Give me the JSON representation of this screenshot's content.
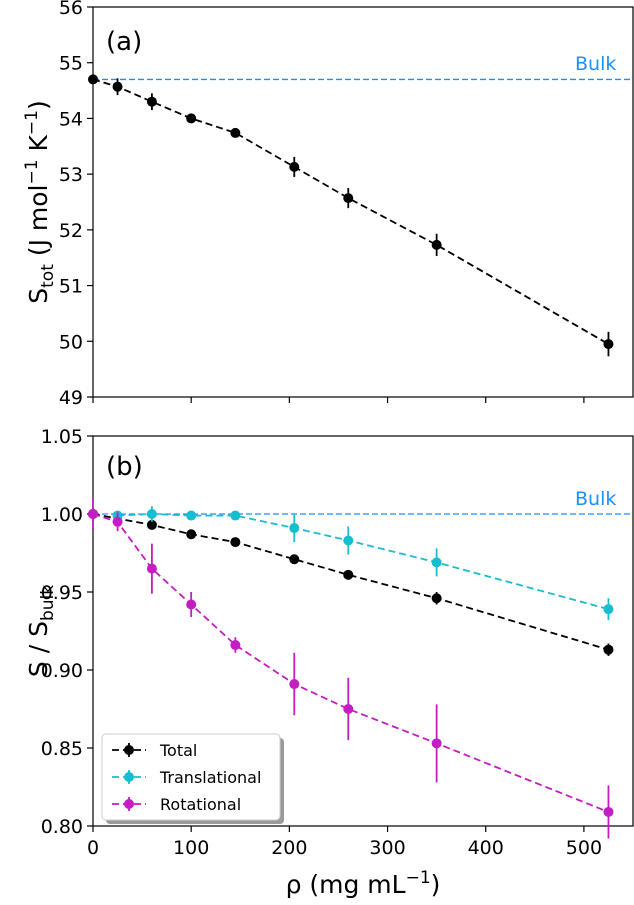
{
  "chart_data": [
    {
      "type": "line",
      "panel_label": "(a)",
      "ylabel_main": "S",
      "ylabel_sub": "tot",
      "ylabel_unit_pre": " (J mol",
      "ylabel_unit_exp1": "−1",
      "ylabel_unit_mid": " K",
      "ylabel_unit_exp2": "−1",
      "ylabel_unit_post": ")",
      "xlim": [
        0,
        550
      ],
      "ylim": [
        49,
        56
      ],
      "xticks": [
        0,
        100,
        200,
        300,
        400,
        500
      ],
      "yticks": [
        49,
        50,
        51,
        52,
        53,
        54,
        55,
        56
      ],
      "ytick_labels": [
        "49",
        "50",
        "51",
        "52",
        "53",
        "54",
        "55",
        "56"
      ],
      "reference_line": {
        "label": "Bulk",
        "y": 54.7,
        "color": "#1f8fff"
      },
      "series": [
        {
          "color": "#000000",
          "x": [
            0,
            25,
            60,
            100,
            145,
            205,
            260,
            350,
            525
          ],
          "y": [
            54.7,
            54.57,
            54.3,
            54.0,
            53.74,
            53.13,
            52.57,
            51.73,
            49.95
          ],
          "err": [
            0.05,
            0.15,
            0.15,
            0.08,
            0.08,
            0.18,
            0.18,
            0.2,
            0.22
          ]
        }
      ]
    },
    {
      "type": "line",
      "panel_label": "(b)",
      "ylabel_main": "S / S",
      "ylabel_sub": "bulk",
      "xlabel_main": "ρ (mg mL",
      "xlabel_exp": "−1",
      "xlabel_post": ")",
      "xlim": [
        0,
        550
      ],
      "ylim": [
        0.8,
        1.05
      ],
      "xticks": [
        0,
        100,
        200,
        300,
        400,
        500
      ],
      "xtick_labels": [
        "0",
        "100",
        "200",
        "300",
        "400",
        "500"
      ],
      "yticks": [
        0.8,
        0.85,
        0.9,
        0.95,
        1.0,
        1.05
      ],
      "ytick_labels": [
        "0.80",
        "0.85",
        "0.90",
        "0.95",
        "1.00",
        "1.05"
      ],
      "reference_line": {
        "label": "Bulk",
        "y": 1.0,
        "color": "#1f8fff"
      },
      "legend_position": "lower-left",
      "series": [
        {
          "name": "Total",
          "color": "#000000",
          "x": [
            0,
            60,
            100,
            145,
            205,
            260,
            350,
            525
          ],
          "y": [
            1.0,
            0.993,
            0.987,
            0.982,
            0.971,
            0.961,
            0.946,
            0.913
          ],
          "err": [
            0.002,
            0.003,
            0.002,
            0.002,
            0.003,
            0.003,
            0.004,
            0.004
          ]
        },
        {
          "name": "Translational",
          "color": "#17becf",
          "x": [
            25,
            60,
            100,
            145,
            205,
            260,
            350,
            525
          ],
          "y": [
            0.999,
            1.0,
            0.999,
            0.999,
            0.991,
            0.983,
            0.969,
            0.939
          ],
          "err": [
            0.002,
            0.005,
            0.002,
            0.002,
            0.009,
            0.009,
            0.009,
            0.007
          ]
        },
        {
          "name": "Rotational",
          "color": "#c41dc4",
          "x": [
            0,
            25,
            60,
            100,
            145,
            205,
            260,
            350,
            525
          ],
          "y": [
            1.0,
            0.995,
            0.965,
            0.942,
            0.916,
            0.891,
            0.875,
            0.853,
            0.809
          ],
          "err": [
            0.01,
            0.006,
            0.016,
            0.008,
            0.005,
            0.02,
            0.02,
            0.025,
            0.017
          ]
        }
      ]
    }
  ]
}
